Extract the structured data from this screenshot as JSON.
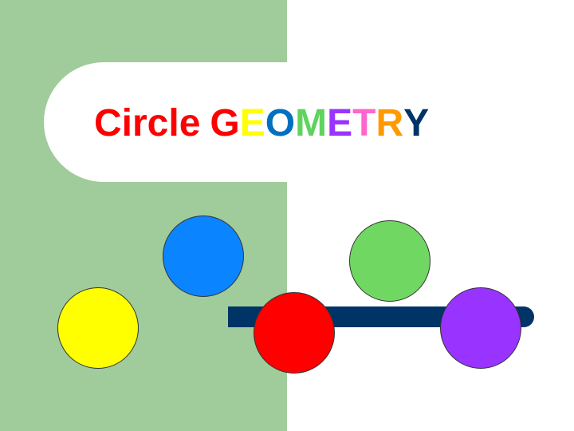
{
  "title": {
    "word1": "Circle",
    "letters": [
      {
        "char": "G",
        "color": "#ff0000"
      },
      {
        "char": "E",
        "color": "#ffff00"
      },
      {
        "char": "O",
        "color": "#0070c0"
      },
      {
        "char": "M",
        "color": "#5fd35f"
      },
      {
        "char": "E",
        "color": "#9933ff"
      },
      {
        "char": "T",
        "color": "#ff66cc"
      },
      {
        "char": "R",
        "color": "#ff9900"
      },
      {
        "char": "Y",
        "color": "#003366"
      }
    ],
    "word1_color": "#ff0000"
  },
  "colors": {
    "panel": "#9fcc9a",
    "bar": "#003366",
    "circles": {
      "blue": "#0a84ff",
      "yellow": "#ffff00",
      "green": "#70d862",
      "red": "#ff0000",
      "purple": "#9933ff"
    }
  }
}
